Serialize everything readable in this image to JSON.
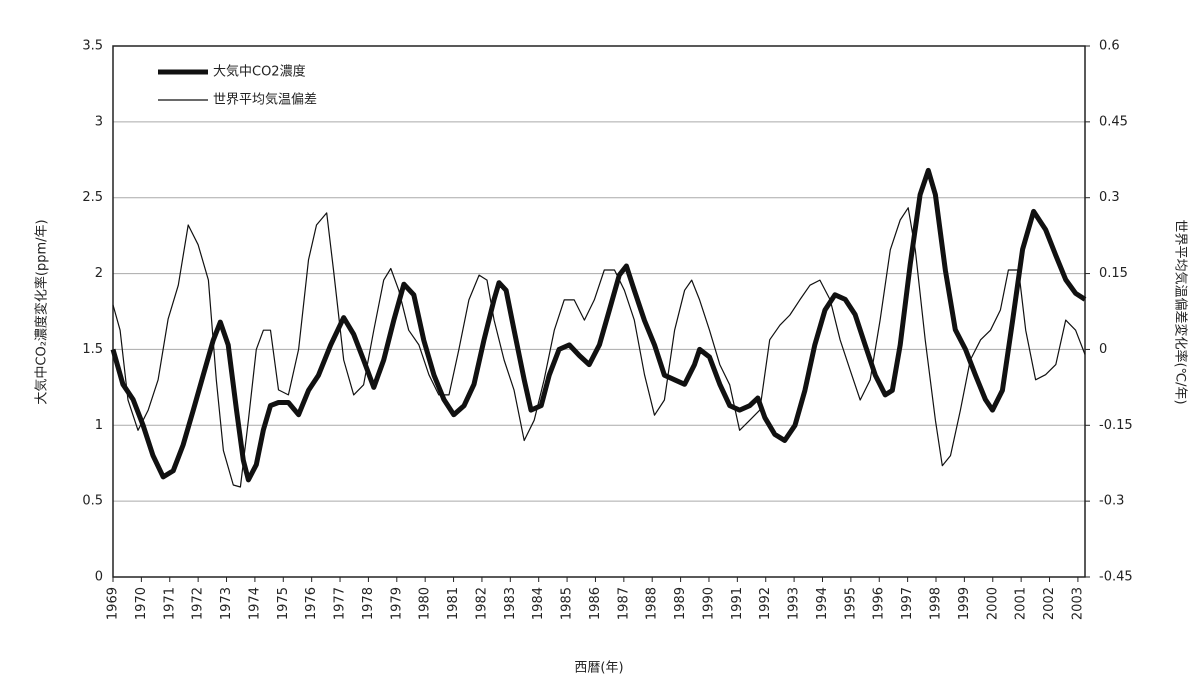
{
  "chart_data": {
    "type": "line",
    "x_label": "西暦(年)",
    "y_label": "大気中CO₂濃度変化率(ppm/年)",
    "y2_label": "世界平均気温偏差変化率(℃/年)",
    "xlim": [
      1969,
      2003.25
    ],
    "xticks": [
      1969,
      1970,
      1971,
      1972,
      1973,
      1974,
      1975,
      1976,
      1977,
      1978,
      1979,
      1980,
      1981,
      1982,
      1983,
      1984,
      1985,
      1986,
      1987,
      1988,
      1989,
      1990,
      1991,
      1992,
      1993,
      1994,
      1995,
      1996,
      1997,
      1998,
      1999,
      2000,
      2001,
      2002,
      2003
    ],
    "ylim": [
      0,
      3.5
    ],
    "yticks": [
      0,
      0.5,
      1,
      1.5,
      2,
      2.5,
      3,
      3.5
    ],
    "y2lim": [
      -0.45,
      0.6
    ],
    "y2ticks": [
      -0.45,
      -0.3,
      -0.15,
      0,
      0.15,
      0.3,
      0.45,
      0.6
    ],
    "grid": true,
    "legend": "upper left",
    "series": [
      {
        "name": "大気中CO2濃度",
        "color": "#111",
        "width": 5,
        "axis": "y",
        "x": [
          1969.0,
          1969.35,
          1969.71,
          1970.06,
          1970.41,
          1970.77,
          1971.12,
          1971.47,
          1971.83,
          1972.18,
          1972.53,
          1972.78,
          1973.06,
          1973.35,
          1973.59,
          1973.77,
          1974.05,
          1974.3,
          1974.55,
          1974.83,
          1975.18,
          1975.54,
          1975.89,
          1976.24,
          1976.67,
          1977.13,
          1977.48,
          1977.83,
          1978.19,
          1978.54,
          1978.89,
          1979.25,
          1979.6,
          1979.95,
          1980.31,
          1980.66,
          1981.01,
          1981.37,
          1981.72,
          1982.07,
          1982.43,
          1982.6,
          1982.85,
          1983.13,
          1983.49,
          1983.73,
          1984.09,
          1984.37,
          1984.72,
          1985.08,
          1985.43,
          1985.78,
          1986.14,
          1986.49,
          1986.84,
          1987.09,
          1987.37,
          1987.73,
          1988.08,
          1988.43,
          1988.79,
          1989.14,
          1989.49,
          1989.67,
          1990.02,
          1990.38,
          1990.73,
          1991.08,
          1991.44,
          1991.72,
          1991.97,
          1992.32,
          1992.67,
          1993.03,
          1993.38,
          1993.73,
          1994.09,
          1994.44,
          1994.8,
          1995.15,
          1995.5,
          1995.86,
          1996.21,
          1996.46,
          1996.74,
          1997.09,
          1997.44,
          1997.73,
          1997.98,
          1998.33,
          1998.68,
          1999.04,
          1999.39,
          1999.74,
          1999.99,
          2000.34,
          2000.7,
          2001.05,
          2001.44,
          2001.86,
          2002.22,
          2002.57,
          2002.92,
          2003.25
        ],
        "values": [
          1.5,
          1.27,
          1.17,
          1.0,
          0.8,
          0.66,
          0.7,
          0.87,
          1.1,
          1.33,
          1.56,
          1.68,
          1.53,
          1.1,
          0.77,
          0.64,
          0.74,
          0.97,
          1.13,
          1.15,
          1.15,
          1.07,
          1.23,
          1.33,
          1.53,
          1.71,
          1.6,
          1.43,
          1.25,
          1.43,
          1.69,
          1.93,
          1.86,
          1.56,
          1.33,
          1.17,
          1.07,
          1.13,
          1.27,
          1.56,
          1.83,
          1.94,
          1.89,
          1.63,
          1.3,
          1.1,
          1.13,
          1.33,
          1.5,
          1.53,
          1.46,
          1.4,
          1.53,
          1.76,
          1.99,
          2.05,
          1.89,
          1.69,
          1.53,
          1.33,
          1.3,
          1.27,
          1.4,
          1.5,
          1.45,
          1.27,
          1.13,
          1.1,
          1.13,
          1.18,
          1.05,
          0.94,
          0.9,
          1.0,
          1.23,
          1.53,
          1.76,
          1.86,
          1.83,
          1.73,
          1.53,
          1.33,
          1.2,
          1.23,
          1.53,
          2.06,
          2.52,
          2.68,
          2.52,
          2.02,
          1.63,
          1.5,
          1.33,
          1.17,
          1.1,
          1.23,
          1.69,
          2.16,
          2.41,
          2.29,
          2.12,
          1.96,
          1.87,
          1.83
        ]
      },
      {
        "name": "世界平均気温偏差",
        "color": "#111",
        "width": 1.2,
        "axis": "y2",
        "x": [
          1969.0,
          1969.25,
          1969.53,
          1969.88,
          1970.24,
          1970.59,
          1970.94,
          1971.3,
          1971.65,
          1972.0,
          1972.36,
          1972.64,
          1972.89,
          1973.24,
          1973.49,
          1973.77,
          1974.05,
          1974.3,
          1974.55,
          1974.83,
          1975.18,
          1975.54,
          1975.89,
          1976.17,
          1976.53,
          1976.77,
          1977.13,
          1977.48,
          1977.83,
          1978.19,
          1978.54,
          1978.79,
          1979.07,
          1979.42,
          1979.78,
          1980.13,
          1980.48,
          1980.84,
          1981.19,
          1981.54,
          1981.9,
          1982.18,
          1982.43,
          1982.78,
          1983.13,
          1983.49,
          1983.84,
          1984.19,
          1984.55,
          1984.9,
          1985.25,
          1985.61,
          1985.96,
          1986.31,
          1986.67,
          1987.02,
          1987.37,
          1987.73,
          1988.08,
          1988.43,
          1988.79,
          1989.14,
          1989.39,
          1989.67,
          1990.02,
          1990.38,
          1990.73,
          1991.08,
          1991.44,
          1991.79,
          1992.14,
          1992.5,
          1992.85,
          1993.2,
          1993.56,
          1993.91,
          1994.27,
          1994.62,
          1994.97,
          1995.33,
          1995.68,
          1996.03,
          1996.39,
          1996.74,
          1997.02,
          1997.27,
          1997.62,
          1997.98,
          1998.22,
          1998.51,
          1998.86,
          1999.21,
          1999.57,
          1999.92,
          2000.27,
          2000.55,
          2000.91,
          2001.16,
          2001.51,
          2001.86,
          2002.22,
          2002.57,
          2002.92,
          2003.25
        ],
        "values": [
          0.088,
          0.038,
          -0.1,
          -0.16,
          -0.12,
          -0.06,
          0.06,
          0.127,
          0.246,
          0.207,
          0.137,
          -0.06,
          -0.2,
          -0.268,
          -0.272,
          -0.14,
          0,
          0.038,
          0.038,
          -0.08,
          -0.09,
          0,
          0.177,
          0.246,
          0.27,
          0.157,
          -0.021,
          -0.09,
          -0.07,
          0.038,
          0.137,
          0.16,
          0.117,
          0.038,
          0.009,
          -0.05,
          -0.09,
          -0.09,
          0,
          0.098,
          0.147,
          0.137,
          0.058,
          -0.021,
          -0.08,
          -0.18,
          -0.14,
          -0.06,
          0.038,
          0.098,
          0.098,
          0.058,
          0.098,
          0.157,
          0.157,
          0.117,
          0.058,
          -0.05,
          -0.13,
          -0.1,
          0.038,
          0.117,
          0.137,
          0.098,
          0.038,
          -0.03,
          -0.07,
          -0.16,
          -0.14,
          -0.12,
          0.019,
          0.048,
          0.068,
          0.098,
          0.127,
          0.137,
          0.098,
          0.019,
          -0.04,
          -0.1,
          -0.06,
          0.058,
          0.197,
          0.256,
          0.28,
          0.197,
          0.019,
          -0.14,
          -0.23,
          -0.21,
          -0.12,
          -0.021,
          0.019,
          0.038,
          0.078,
          0.157,
          0.157,
          0.038,
          -0.06,
          -0.05,
          -0.03,
          0.058,
          0.038,
          -0.01
        ]
      }
    ]
  }
}
